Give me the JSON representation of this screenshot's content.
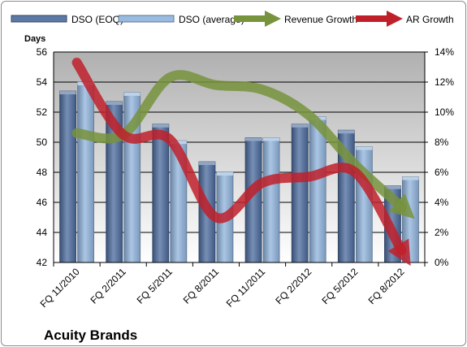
{
  "chart_data": {
    "type": "bar",
    "company": "Acuity Brands",
    "ylabel": "Days",
    "ylim": [
      42,
      56
    ],
    "y_ticks": [
      "42",
      "44",
      "46",
      "48",
      "50",
      "52",
      "54",
      "56"
    ],
    "y2lim": [
      0,
      14
    ],
    "y2_ticks": [
      "0%",
      "2%",
      "4%",
      "6%",
      "8%",
      "10%",
      "12%",
      "14%"
    ],
    "grid": true,
    "plot_background": "#c0c0c0",
    "legend_position": "top",
    "categories": [
      "FQ 11/2010",
      "FQ 2/2011",
      "FQ 5/2011",
      "FQ 8/2011",
      "FQ 11/2011",
      "FQ 2/2012",
      "FQ 5/2012",
      "FQ 8/2012"
    ],
    "bar_series": [
      {
        "name": "DSO (EOQ)",
        "color": "#4a6a9c",
        "values": [
          53.4,
          52.7,
          51.2,
          48.7,
          50.3,
          51.2,
          50.8,
          47.1
        ]
      },
      {
        "name": "DSO (average)",
        "color": "#8fb3dc",
        "values": [
          54.0,
          53.3,
          50.1,
          48.0,
          50.3,
          51.7,
          49.7,
          47.7
        ]
      }
    ],
    "line_series": [
      {
        "name": "Revenue Growth",
        "color": "#77933c",
        "axis": "right",
        "values": [
          8.6,
          8.5,
          12.3,
          11.8,
          11.5,
          9.8,
          6.5,
          3.7
        ]
      },
      {
        "name": "AR Growth",
        "color": "#c0202a",
        "axis": "right",
        "values": [
          13.3,
          8.5,
          8.2,
          3.0,
          5.3,
          5.7,
          6.0,
          0.8
        ]
      }
    ]
  }
}
